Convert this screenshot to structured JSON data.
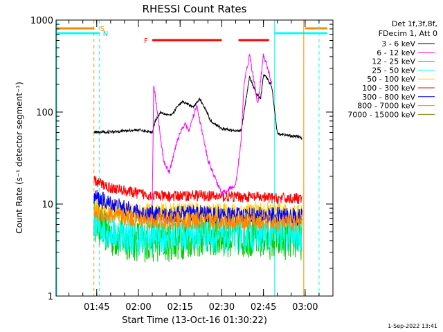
{
  "chart_data": {
    "type": "line",
    "title": "RHESSI Count Rates",
    "xlabel": "Start Time (13-Oct-16 01:30:22)",
    "ylabel": "Count Rate (s⁻¹ detector segment⁻¹)",
    "y_scale": "log",
    "ylim": [
      1,
      1000
    ],
    "y_ticks": [
      {
        "value": 1,
        "label": "1"
      },
      {
        "value": 10,
        "label": "10"
      },
      {
        "value": 100,
        "label": "100"
      },
      {
        "value": 1000,
        "label": "1000"
      }
    ],
    "xlim": [
      "01:30:22",
      "03:10:00"
    ],
    "x_ticks": [
      {
        "value": "01:45",
        "label": "01:45"
      },
      {
        "value": "02:00",
        "label": "02:00"
      },
      {
        "value": "02:15",
        "label": "02:15"
      },
      {
        "value": "02:30",
        "label": "02:30"
      },
      {
        "value": "02:45",
        "label": "02:45"
      },
      {
        "value": "03:00",
        "label": "03:00"
      }
    ],
    "legend_title": [
      "Det 1f,3f,8f,",
      "FDecim 1, Att 0"
    ],
    "legend_position": "right",
    "grid": false,
    "series": [
      {
        "name": "3 - 6 keV",
        "color": "#000000",
        "x": [
          "01:44",
          "01:50",
          "02:00",
          "02:05",
          "02:06",
          "02:08",
          "02:10",
          "02:12",
          "02:14",
          "02:16",
          "02:18",
          "02:20",
          "02:22",
          "02:24",
          "02:26",
          "02:30",
          "02:35",
          "02:37",
          "02:38",
          "02:40",
          "02:42",
          "02:43",
          "02:44",
          "02:45",
          "02:46",
          "02:48",
          "02:50",
          "02:55",
          "02:58",
          "02:59"
        ],
        "values": [
          60,
          61,
          64,
          60,
          80,
          100,
          95,
          92,
          115,
          130,
          120,
          115,
          140,
          110,
          80,
          66,
          62,
          64,
          100,
          240,
          170,
          150,
          140,
          250,
          240,
          190,
          58,
          55,
          54,
          50
        ]
      },
      {
        "name": "6 - 12 keV",
        "color": "#ff00ff",
        "x": [
          "02:05",
          "02:05:30",
          "02:07",
          "02:09",
          "02:11",
          "02:12",
          "02:14",
          "02:16",
          "02:17",
          "02:18",
          "02:20",
          "02:21",
          "02:23",
          "02:25",
          "02:28",
          "02:30",
          "02:35",
          "02:37",
          "02:38",
          "02:40",
          "02:42",
          "02:43",
          "02:44",
          "02:45",
          "02:46",
          "02:48"
        ],
        "values": [
          10,
          200,
          90,
          30,
          22,
          28,
          50,
          70,
          75,
          60,
          95,
          120,
          60,
          30,
          18,
          13,
          16,
          50,
          200,
          420,
          180,
          120,
          220,
          420,
          350,
          200
        ]
      },
      {
        "name": "12 - 25 keV",
        "color": "#00cc00",
        "x": [
          "01:44",
          "01:50",
          "02:00",
          "02:10",
          "02:20",
          "02:30",
          "02:40",
          "02:50",
          "02:59"
        ],
        "values": [
          7,
          4.5,
          4,
          4,
          4.5,
          4.5,
          4.5,
          4.2,
          4.2
        ]
      },
      {
        "name": "25 - 50 keV",
        "color": "#00ffff",
        "x": [
          "01:44",
          "01:50",
          "02:00",
          "02:10",
          "02:20",
          "02:30",
          "02:40",
          "02:50",
          "02:59"
        ],
        "values": [
          6,
          5,
          4.2,
          4.6,
          4.8,
          4.4,
          4.8,
          4.6,
          4.6
        ]
      },
      {
        "name": "50 - 100 keV",
        "color": "#ffcc00",
        "x": [
          "01:44",
          "01:50",
          "02:00",
          "02:10",
          "02:20",
          "02:30",
          "02:40",
          "02:50",
          "02:59"
        ],
        "values": [
          9,
          9,
          8,
          8,
          8.2,
          8,
          8.2,
          8,
          7.8
        ]
      },
      {
        "name": "100 - 300 keV",
        "color": "#ff0000",
        "x": [
          "01:44",
          "01:50",
          "02:00",
          "02:10",
          "02:20",
          "02:30",
          "02:40",
          "02:50",
          "02:59"
        ],
        "values": [
          18,
          15,
          13,
          12,
          12.5,
          12,
          12,
          11.5,
          11.5
        ]
      },
      {
        "name": "300 - 800 keV",
        "color": "#0000ff",
        "x": [
          "01:44",
          "01:50",
          "02:00",
          "02:10",
          "02:20",
          "02:30",
          "02:40",
          "02:50",
          "02:59"
        ],
        "values": [
          12,
          10,
          8,
          7.5,
          8,
          7.5,
          7.5,
          7.5,
          7.2
        ]
      },
      {
        "name": "800 - 7000 keV",
        "color": "#ff8800",
        "x": [
          "01:44",
          "01:50",
          "02:00",
          "02:10",
          "02:20",
          "02:30",
          "02:40",
          "02:50",
          "02:59"
        ],
        "values": [
          8,
          7.5,
          6.8,
          6.5,
          6.5,
          6.5,
          6.5,
          6.2,
          6.2
        ]
      },
      {
        "name": "7000 - 15000 keV",
        "color": "#808000",
        "x": [],
        "values": []
      }
    ],
    "annotations": [
      {
        "text": "S",
        "color": "#ff8800"
      },
      {
        "text": "N",
        "color": "#00cccc"
      },
      {
        "text": "F",
        "color": "#ff0000"
      }
    ],
    "timestamp": "1-Sep-2022 13:41"
  }
}
